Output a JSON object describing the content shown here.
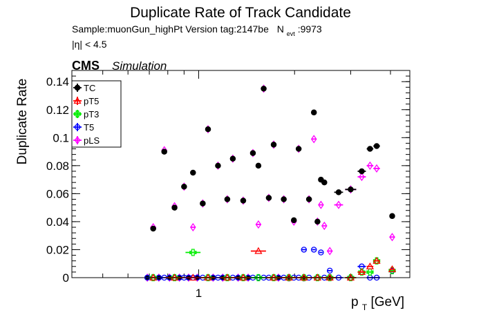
{
  "header": {
    "title": "Duplicate Rate of Track Candidate",
    "sample_line": "Sample:muonGun_highPt   Version tag:2147be",
    "nevt_label": "N",
    "nevt_sub": "evt",
    "nevt_value": ":9973",
    "eta_cut": "|η| < 4.5",
    "cms": "CMS",
    "simulation": "Simulation"
  },
  "chart_data": {
    "type": "scatter",
    "title": "Duplicate Rate of Track Candidate",
    "xlabel_main": "p",
    "xlabel_sub": "T",
    "xlabel_rest": " [GeV]",
    "ylabel": "Duplicate Rate",
    "x_scale": "log",
    "xlim": [
      0.4,
      4.6
    ],
    "ylim": [
      0,
      0.148
    ],
    "x_ticks": [
      {
        "v": 1,
        "label": "1"
      }
    ],
    "y_ticks": [
      {
        "v": 0,
        "label": "0"
      },
      {
        "v": 0.02,
        "label": "0.02"
      },
      {
        "v": 0.04,
        "label": "0.04"
      },
      {
        "v": 0.06,
        "label": "0.06"
      },
      {
        "v": 0.08,
        "label": "0.08"
      },
      {
        "v": 0.1,
        "label": "0.1"
      },
      {
        "v": 0.12,
        "label": "0.12"
      },
      {
        "v": 0.14,
        "label": "0.14"
      }
    ],
    "grid": false,
    "legend_position": "top-left",
    "series": [
      {
        "name": "TC",
        "color": "#000000",
        "marker": "filled-circle",
        "points": [
          [
            0.69,
            0.0
          ],
          [
            0.72,
            0.035
          ],
          [
            0.75,
            0.0
          ],
          [
            0.78,
            0.09
          ],
          [
            0.81,
            0.0
          ],
          [
            0.84,
            0.05
          ],
          [
            0.87,
            0.0
          ],
          [
            0.9,
            0.065
          ],
          [
            0.93,
            0.0
          ],
          [
            0.96,
            0.075
          ],
          [
            0.99,
            0.0
          ],
          [
            1.03,
            0.053
          ],
          [
            1.07,
            0.106
          ],
          [
            1.11,
            0.0
          ],
          [
            1.15,
            0.08
          ],
          [
            1.19,
            0.0
          ],
          [
            1.23,
            0.056
          ],
          [
            1.28,
            0.085
          ],
          [
            1.33,
            0.0
          ],
          [
            1.38,
            0.055
          ],
          [
            1.43,
            0.0
          ],
          [
            1.48,
            0.089
          ],
          [
            1.54,
            0.08
          ],
          [
            1.6,
            0.135
          ],
          [
            1.66,
            0.057
          ],
          [
            1.72,
            0.095
          ],
          [
            1.78,
            0.0
          ],
          [
            1.85,
            0.056
          ],
          [
            1.92,
            0.0
          ],
          [
            1.99,
            0.041
          ],
          [
            2.06,
            0.092
          ],
          [
            2.14,
            0.0
          ],
          [
            2.22,
            0.056
          ],
          [
            2.3,
            0.118
          ],
          [
            2.36,
            0.04
          ],
          [
            2.42,
            0.07
          ],
          [
            2.48,
            0.068
          ],
          [
            2.58,
            0.0
          ],
          [
            2.75,
            0.061
          ],
          [
            3.0,
            0.063
          ],
          [
            3.25,
            0.076
          ],
          [
            3.45,
            0.092
          ],
          [
            3.62,
            0.094
          ],
          [
            4.05,
            0.044
          ]
        ]
      },
      {
        "name": "pT5",
        "color": "#ff0000",
        "marker": "open-triangle",
        "points": [
          [
            0.72,
            0.0
          ],
          [
            0.84,
            0.0
          ],
          [
            0.96,
            0.0
          ],
          [
            1.07,
            0.0
          ],
          [
            1.23,
            0.0
          ],
          [
            1.38,
            0.0
          ],
          [
            1.54,
            0.019
          ],
          [
            1.72,
            0.0
          ],
          [
            1.92,
            0.0
          ],
          [
            2.14,
            0.0
          ],
          [
            2.36,
            0.0
          ],
          [
            2.58,
            0.0
          ],
          [
            3.0,
            0.0
          ],
          [
            3.25,
            0.004
          ],
          [
            3.45,
            0.008
          ],
          [
            3.62,
            0.012
          ],
          [
            4.05,
            0.006
          ]
        ]
      },
      {
        "name": "pT3",
        "color": "#00ee00",
        "marker": "open-cross",
        "points": [
          [
            0.72,
            0.0
          ],
          [
            0.84,
            0.0
          ],
          [
            0.96,
            0.018
          ],
          [
            1.07,
            0.0
          ],
          [
            1.23,
            0.0
          ],
          [
            1.38,
            0.0
          ],
          [
            1.54,
            0.0
          ],
          [
            1.72,
            0.0
          ],
          [
            1.92,
            0.0
          ],
          [
            2.14,
            0.0
          ],
          [
            2.36,
            0.0
          ],
          [
            2.58,
            0.0
          ],
          [
            3.0,
            0.0
          ],
          [
            3.25,
            0.004
          ],
          [
            3.45,
            0.004
          ],
          [
            3.62,
            0.012
          ],
          [
            4.05,
            0.005
          ]
        ]
      },
      {
        "name": "T5",
        "color": "#0000ff",
        "marker": "open-circle",
        "points": [
          [
            0.69,
            0.0
          ],
          [
            0.72,
            0.0
          ],
          [
            0.75,
            0.0
          ],
          [
            0.78,
            0.0
          ],
          [
            0.81,
            0.0
          ],
          [
            0.84,
            0.0
          ],
          [
            0.87,
            0.0
          ],
          [
            0.9,
            0.0
          ],
          [
            0.93,
            0.0
          ],
          [
            0.96,
            0.0
          ],
          [
            0.99,
            0.0
          ],
          [
            1.03,
            0.0
          ],
          [
            1.07,
            0.0
          ],
          [
            1.11,
            0.0
          ],
          [
            1.15,
            0.0
          ],
          [
            1.19,
            0.0
          ],
          [
            1.23,
            0.0
          ],
          [
            1.28,
            0.0
          ],
          [
            1.33,
            0.0
          ],
          [
            1.38,
            0.0
          ],
          [
            1.43,
            0.0
          ],
          [
            1.48,
            0.0
          ],
          [
            1.54,
            0.0
          ],
          [
            1.6,
            0.0
          ],
          [
            1.66,
            0.0
          ],
          [
            1.72,
            0.0
          ],
          [
            1.78,
            0.0
          ],
          [
            1.85,
            0.0
          ],
          [
            1.92,
            0.0
          ],
          [
            1.99,
            0.0
          ],
          [
            2.06,
            0.0
          ],
          [
            2.14,
            0.02
          ],
          [
            2.22,
            0.0
          ],
          [
            2.3,
            0.02
          ],
          [
            2.36,
            0.0
          ],
          [
            2.42,
            0.018
          ],
          [
            2.48,
            0.0
          ],
          [
            2.58,
            0.005
          ],
          [
            2.75,
            0.0
          ],
          [
            3.0,
            0.0
          ],
          [
            3.25,
            0.008
          ],
          [
            3.45,
            0.0
          ],
          [
            3.62,
            0.0
          ],
          [
            4.05,
            0.005
          ]
        ]
      },
      {
        "name": "pLS",
        "color": "#ff00ff",
        "marker": "open-diamond",
        "points": [
          [
            0.69,
            0.0
          ],
          [
            0.72,
            0.036
          ],
          [
            0.75,
            0.0
          ],
          [
            0.78,
            0.091
          ],
          [
            0.81,
            0.0
          ],
          [
            0.84,
            0.051
          ],
          [
            0.87,
            0.0
          ],
          [
            0.9,
            0.065
          ],
          [
            0.93,
            0.0
          ],
          [
            0.96,
            0.036
          ],
          [
            0.99,
            0.0
          ],
          [
            1.03,
            0.053
          ],
          [
            1.07,
            0.106
          ],
          [
            1.11,
            0.0
          ],
          [
            1.15,
            0.08
          ],
          [
            1.19,
            0.0
          ],
          [
            1.23,
            0.056
          ],
          [
            1.28,
            0.085
          ],
          [
            1.33,
            0.0
          ],
          [
            1.38,
            0.055
          ],
          [
            1.43,
            0.0
          ],
          [
            1.48,
            0.089
          ],
          [
            1.54,
            0.038
          ],
          [
            1.6,
            0.135
          ],
          [
            1.66,
            0.057
          ],
          [
            1.72,
            0.095
          ],
          [
            1.78,
            0.0
          ],
          [
            1.85,
            0.056
          ],
          [
            1.92,
            0.0
          ],
          [
            1.99,
            0.04
          ],
          [
            2.06,
            0.092
          ],
          [
            2.14,
            0.0
          ],
          [
            2.22,
            0.056
          ],
          [
            2.3,
            0.099
          ],
          [
            2.36,
            0.04
          ],
          [
            2.42,
            0.052
          ],
          [
            2.48,
            0.037
          ],
          [
            2.58,
            0.019
          ],
          [
            2.75,
            0.052
          ],
          [
            3.0,
            0.063
          ],
          [
            3.25,
            0.072
          ],
          [
            3.45,
            0.08
          ],
          [
            3.62,
            0.078
          ],
          [
            4.05,
            0.029
          ]
        ]
      }
    ]
  }
}
